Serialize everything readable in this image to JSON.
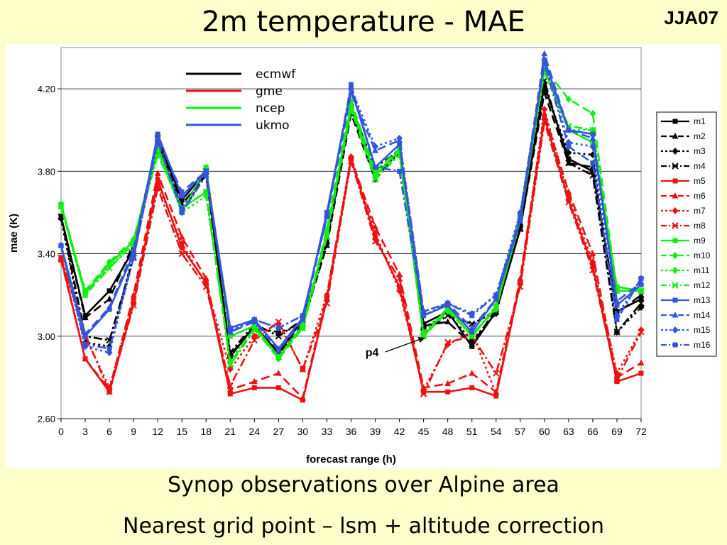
{
  "page": {
    "title": "2m temperature - MAE",
    "tag": "JJA07",
    "subtitle1": "Synop observations over Alpine area",
    "subtitle2": "Nearest grid point – lsm + altitude correction"
  },
  "colors": {
    "ecmwf": "#000000",
    "gme": "#ee1111",
    "ncep": "#11ee11",
    "ukmo": "#3355dd"
  },
  "chart_data": {
    "type": "line",
    "xlabel": "forecast range (h)",
    "ylabel": "mae (K)",
    "x": [
      0,
      3,
      6,
      9,
      12,
      15,
      18,
      21,
      24,
      27,
      30,
      33,
      36,
      39,
      42,
      45,
      48,
      51,
      54,
      57,
      60,
      63,
      66,
      69,
      72
    ],
    "ylim": [
      2.6,
      4.4
    ],
    "yticks": [
      2.6,
      3.0,
      3.4,
      3.8,
      4.2
    ],
    "yticklabels": [
      "2.60",
      "3.00",
      "3.40",
      "3.80",
      "4.20"
    ],
    "grid": true,
    "model_legend": [
      {
        "name": "ecmwf",
        "color": "#000000"
      },
      {
        "name": "gme",
        "color": "#ee1111"
      },
      {
        "name": "ncep",
        "color": "#11ee11"
      },
      {
        "name": "ukmo",
        "color": "#3355dd"
      }
    ],
    "annotation": {
      "text": "p4",
      "x": 51,
      "y": 3.02
    },
    "series": [
      {
        "name": "m1",
        "color": "#000000",
        "dash": "solid",
        "marker": "square",
        "values": [
          3.58,
          3.1,
          3.22,
          3.42,
          3.96,
          3.66,
          3.8,
          2.9,
          3.05,
          2.92,
          3.08,
          3.46,
          4.1,
          3.78,
          3.9,
          3.06,
          3.12,
          2.95,
          3.12,
          3.52,
          4.22,
          3.86,
          3.8,
          3.12,
          3.18
        ]
      },
      {
        "name": "m2",
        "color": "#000000",
        "dash": "dash",
        "marker": "triangle",
        "values": [
          3.58,
          3.09,
          3.18,
          3.45,
          3.94,
          3.64,
          3.78,
          2.91,
          3.05,
          2.91,
          3.06,
          3.44,
          4.08,
          3.76,
          3.9,
          3.05,
          3.07,
          2.96,
          3.13,
          3.52,
          4.18,
          3.84,
          3.82,
          3.11,
          3.2
        ]
      },
      {
        "name": "m3",
        "color": "#000000",
        "dash": "dot",
        "marker": "diamond",
        "values": [
          3.57,
          2.97,
          2.95,
          3.4,
          3.93,
          3.6,
          3.79,
          2.91,
          3.04,
          3.02,
          3.05,
          3.45,
          4.12,
          3.8,
          3.88,
          3.04,
          3.11,
          2.98,
          3.11,
          3.54,
          4.2,
          3.89,
          3.88,
          3.02,
          3.14
        ]
      },
      {
        "name": "m4",
        "color": "#000000",
        "dash": "dashdot",
        "marker": "x",
        "values": [
          3.58,
          3.0,
          2.98,
          3.38,
          3.96,
          3.62,
          3.8,
          2.92,
          3.06,
          3.0,
          3.08,
          3.46,
          4.11,
          3.82,
          3.9,
          3.02,
          3.1,
          3.06,
          3.12,
          3.52,
          4.24,
          3.84,
          3.78,
          3.02,
          3.16
        ]
      },
      {
        "name": "m5",
        "color": "#ee1111",
        "dash": "solid",
        "marker": "square",
        "values": [
          3.38,
          2.89,
          2.73,
          3.16,
          3.76,
          3.43,
          3.26,
          2.72,
          2.75,
          2.75,
          2.69,
          3.18,
          3.86,
          3.48,
          3.24,
          2.73,
          2.73,
          2.75,
          2.71,
          3.26,
          4.06,
          3.66,
          3.34,
          2.78,
          2.82
        ]
      },
      {
        "name": "m6",
        "color": "#ee1111",
        "dash": "dash",
        "marker": "triangle",
        "values": [
          3.37,
          2.89,
          2.74,
          3.2,
          3.79,
          3.48,
          3.28,
          2.74,
          2.78,
          2.82,
          2.7,
          3.2,
          3.86,
          3.53,
          3.3,
          2.75,
          2.77,
          2.82,
          2.73,
          3.28,
          4.08,
          3.7,
          3.4,
          2.8,
          2.87
        ]
      },
      {
        "name": "m7",
        "color": "#ee1111",
        "dash": "dot",
        "marker": "diamond",
        "values": [
          3.38,
          3.0,
          2.75,
          3.18,
          3.74,
          3.45,
          3.25,
          2.84,
          3.0,
          3.06,
          2.84,
          3.2,
          3.87,
          3.5,
          3.22,
          2.74,
          2.96,
          3.02,
          2.72,
          3.26,
          4.1,
          3.68,
          3.36,
          2.82,
          3.03
        ]
      },
      {
        "name": "m8",
        "color": "#ee1111",
        "dash": "dashdot",
        "marker": "x",
        "values": [
          3.38,
          3.01,
          2.73,
          3.15,
          3.72,
          3.4,
          3.24,
          2.76,
          2.98,
          3.07,
          2.84,
          3.16,
          3.85,
          3.46,
          3.28,
          2.72,
          2.97,
          3.0,
          2.82,
          3.24,
          4.04,
          3.65,
          3.32,
          2.79,
          3.02
        ]
      },
      {
        "name": "m9",
        "color": "#11ee11",
        "dash": "solid",
        "marker": "square",
        "values": [
          3.64,
          3.21,
          3.35,
          3.46,
          3.92,
          3.6,
          3.82,
          3.0,
          3.05,
          2.9,
          3.05,
          3.5,
          4.12,
          3.78,
          3.9,
          3.0,
          3.14,
          3.0,
          3.14,
          3.56,
          4.3,
          4.0,
          3.94,
          3.24,
          3.22
        ]
      },
      {
        "name": "m10",
        "color": "#11ee11",
        "dash": "dash",
        "marker": "diamond",
        "values": [
          3.64,
          3.22,
          3.36,
          3.47,
          3.9,
          3.62,
          3.7,
          2.87,
          3.04,
          2.89,
          3.04,
          3.52,
          4.14,
          3.8,
          3.91,
          3.0,
          3.12,
          3.01,
          3.13,
          3.58,
          4.3,
          4.15,
          4.08,
          3.22,
          3.22
        ]
      },
      {
        "name": "m11",
        "color": "#11ee11",
        "dash": "dot",
        "marker": "diamond",
        "values": [
          3.63,
          3.2,
          3.34,
          3.44,
          3.9,
          3.6,
          3.68,
          2.88,
          3.04,
          2.9,
          3.06,
          3.5,
          4.1,
          3.78,
          3.89,
          3.02,
          3.13,
          3.0,
          3.15,
          3.6,
          4.32,
          4.0,
          4.0,
          3.22,
          3.22
        ]
      },
      {
        "name": "m12",
        "color": "#11ee11",
        "dash": "dashdot",
        "marker": "x",
        "values": [
          3.63,
          3.2,
          3.33,
          3.45,
          3.88,
          3.62,
          3.7,
          2.86,
          3.03,
          2.9,
          3.04,
          3.48,
          4.1,
          3.76,
          3.88,
          3.0,
          3.14,
          3.0,
          3.14,
          3.58,
          4.28,
          4.02,
          4.0,
          3.22,
          3.22
        ]
      },
      {
        "name": "m13",
        "color": "#3355dd",
        "dash": "solid",
        "marker": "square",
        "values": [
          3.44,
          3.0,
          3.13,
          3.4,
          3.98,
          3.68,
          3.8,
          3.04,
          3.08,
          2.94,
          3.09,
          3.6,
          4.2,
          3.82,
          3.93,
          3.1,
          3.15,
          3.02,
          3.18,
          3.56,
          4.34,
          4.0,
          3.98,
          3.15,
          3.25
        ]
      },
      {
        "name": "m14",
        "color": "#3355dd",
        "dash": "dash",
        "marker": "triangle",
        "values": [
          3.44,
          3.01,
          3.14,
          3.42,
          3.96,
          3.7,
          3.8,
          3.02,
          3.07,
          2.93,
          3.08,
          3.58,
          4.18,
          3.9,
          3.95,
          3.12,
          3.16,
          3.04,
          3.18,
          3.58,
          4.37,
          4.0,
          3.96,
          3.17,
          3.26
        ]
      },
      {
        "name": "m15",
        "color": "#3355dd",
        "dash": "dot",
        "marker": "diamond",
        "values": [
          3.44,
          2.95,
          2.92,
          3.38,
          3.94,
          3.62,
          3.8,
          3.03,
          3.08,
          3.04,
          3.1,
          3.58,
          4.2,
          3.92,
          3.96,
          3.12,
          3.16,
          3.11,
          3.2,
          3.6,
          4.34,
          3.94,
          3.92,
          3.1,
          3.28
        ]
      },
      {
        "name": "m16",
        "color": "#3355dd",
        "dash": "dashdot",
        "marker": "square",
        "values": [
          3.44,
          2.96,
          2.94,
          3.38,
          3.95,
          3.6,
          3.78,
          3.02,
          3.08,
          3.04,
          3.1,
          3.58,
          4.22,
          3.82,
          3.8,
          3.1,
          3.16,
          3.1,
          3.2,
          3.58,
          4.32,
          3.92,
          3.84,
          3.08,
          3.28
        ]
      }
    ]
  }
}
